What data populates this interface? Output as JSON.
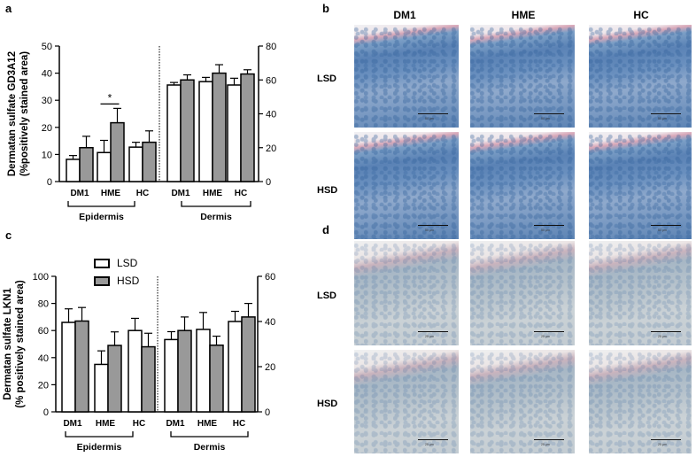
{
  "panels": {
    "a": "a",
    "b": "b",
    "c": "c",
    "d": "d"
  },
  "legend": {
    "lsd": "LSD",
    "hsd": "HSD",
    "lsd_color": "#ffffff",
    "hsd_color": "#999999"
  },
  "micro": {
    "columns": [
      "DM1",
      "HME",
      "HC"
    ],
    "rows_b": [
      "LSD",
      "HSD"
    ],
    "rows_d": [
      "LSD",
      "HSD"
    ],
    "scale_b": "50 µm",
    "scale_d": "25 µm"
  },
  "chart_data": [
    {
      "type": "bar",
      "panel": "a",
      "ylabel_line1": "Dermatan sulfate GD3A12",
      "ylabel_line2": "(%positively stained area)",
      "left_axis": {
        "ticks": [
          0,
          10,
          20,
          30,
          40,
          50
        ],
        "ylim": [
          0,
          50
        ]
      },
      "right_axis": {
        "ticks": [
          0,
          20,
          40,
          60,
          80
        ],
        "ylim": [
          0,
          80
        ]
      },
      "categories": [
        "DM1",
        "HME",
        "HC"
      ],
      "groups": [
        {
          "name": "Epidermis",
          "axis": "left",
          "series": [
            {
              "name": "LSD",
              "values": [
                8.2,
                10.7,
                12.7
              ],
              "errors": [
                1.4,
                4.5,
                1.8
              ]
            },
            {
              "name": "HSD",
              "values": [
                12.5,
                21.7,
                14.5
              ],
              "errors": [
                4.2,
                5.3,
                4.2
              ]
            }
          ]
        },
        {
          "name": "Dermis",
          "axis": "right",
          "series": [
            {
              "name": "LSD",
              "values": [
                57,
                59,
                57
              ],
              "errors": [
                1.5,
                2.5,
                4
              ]
            },
            {
              "name": "HSD",
              "values": [
                60,
                64,
                63.5
              ],
              "errors": [
                3,
                5,
                2.5
              ]
            }
          ]
        }
      ],
      "annotations": [
        {
          "text": "*",
          "group": "Epidermis",
          "between": [
            "HME LSD",
            "HME HSD"
          ]
        }
      ]
    },
    {
      "type": "bar",
      "panel": "c",
      "ylabel_line1": "Dermatan sulfate LKN1",
      "ylabel_line2": "(% positively stained area)",
      "left_axis": {
        "ticks": [
          0,
          20,
          40,
          60,
          80,
          100
        ],
        "ylim": [
          0,
          100
        ]
      },
      "right_axis": {
        "ticks": [
          0,
          20,
          40,
          60
        ],
        "ylim": [
          0,
          60
        ]
      },
      "categories": [
        "DM1",
        "HME",
        "HC"
      ],
      "groups": [
        {
          "name": "Epidermis",
          "axis": "left",
          "series": [
            {
              "name": "LSD",
              "values": [
                66,
                35,
                60
              ],
              "errors": [
                10,
                10,
                9
              ]
            },
            {
              "name": "HSD",
              "values": [
                67,
                49,
                48
              ],
              "errors": [
                10,
                10,
                10
              ]
            }
          ]
        },
        {
          "name": "Dermis",
          "axis": "right",
          "series": [
            {
              "name": "LSD",
              "values": [
                32,
                36.5,
                40
              ],
              "errors": [
                3.5,
                7.5,
                4.5
              ]
            },
            {
              "name": "HSD",
              "values": [
                36,
                29.5,
                42
              ],
              "errors": [
                6,
                4,
                6
              ]
            }
          ]
        }
      ],
      "annotations": []
    }
  ]
}
